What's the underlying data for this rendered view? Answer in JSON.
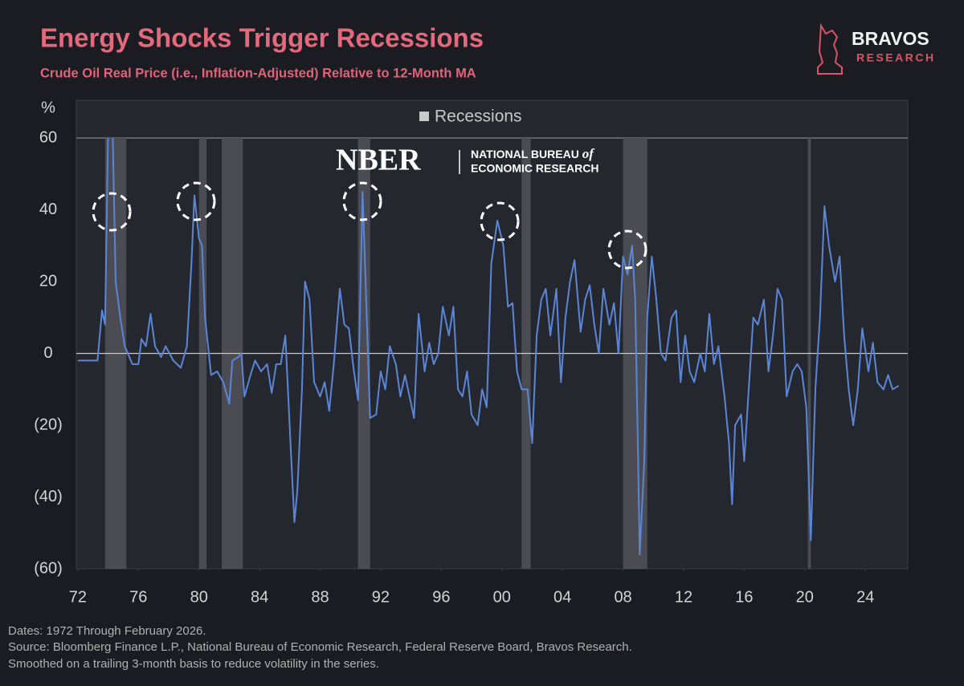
{
  "chart_data": {
    "type": "line",
    "title": "Energy Shocks Trigger Recessions",
    "subtitle": "Crude Oil Real Price (i.e., Inflation-Adjusted) Relative to 12-Month MA",
    "y_axis_label": "%",
    "brand": {
      "name": "BRAVOS",
      "sub": "RESEARCH"
    },
    "source_logo": {
      "mark": "NBER",
      "line1": "NATIONAL BUREAU",
      "line1_suffix": "of",
      "line2": "ECONOMIC RESEARCH"
    },
    "footnotes": [
      "Dates: 1972 Through February 2026.",
      "Source: Bloomberg Finance L.P., National Bureau of Economic Research, Federal Reserve Board, Bravos Research.",
      "Smoothed on a trailing 3-month basis to reduce volatility in the series."
    ],
    "color": "#5b86d8",
    "recessions": {
      "name": "Recessions",
      "color": "#4b4c53",
      "periods": [
        [
          1973.8,
          1975.2
        ],
        [
          1980.0,
          1980.5
        ],
        [
          1981.5,
          1982.9
        ],
        [
          1990.5,
          1991.3
        ],
        [
          2001.3,
          2001.9
        ],
        [
          2008.0,
          2009.6
        ],
        [
          2020.2,
          2020.4
        ]
      ]
    },
    "x": [
      1972.0,
      1973.3,
      1973.6,
      1973.8,
      1974.0,
      1974.3,
      1974.5,
      1974.8,
      1975.1,
      1975.6,
      1976.0,
      1976.2,
      1976.5,
      1976.8,
      1977.1,
      1977.5,
      1977.8,
      1978.3,
      1978.8,
      1979.2,
      1979.5,
      1979.7,
      1980.0,
      1980.2,
      1980.4,
      1980.8,
      1981.2,
      1981.6,
      1982.0,
      1982.2,
      1982.6,
      1982.8,
      1983.0,
      1983.4,
      1983.7,
      1984.1,
      1984.5,
      1984.8,
      1985.1,
      1985.4,
      1985.7,
      1986.1,
      1986.3,
      1986.5,
      1986.8,
      1987.0,
      1987.3,
      1987.6,
      1988.0,
      1988.3,
      1988.6,
      1988.9,
      1989.3,
      1989.6,
      1989.9,
      1990.2,
      1990.5,
      1990.8,
      1991.0,
      1991.3,
      1991.7,
      1992.0,
      1992.3,
      1992.6,
      1993.0,
      1993.3,
      1993.6,
      1993.9,
      1994.2,
      1994.5,
      1994.9,
      1995.2,
      1995.5,
      1995.8,
      1996.1,
      1996.5,
      1996.8,
      1997.1,
      1997.4,
      1997.7,
      1998.0,
      1998.4,
      1998.7,
      1999.0,
      1999.3,
      1999.7,
      2000.1,
      2000.4,
      2000.7,
      2001.0,
      2001.3,
      2001.7,
      2002.0,
      2002.3,
      2002.6,
      2002.9,
      2003.2,
      2003.6,
      2003.9,
      2004.2,
      2004.5,
      2004.8,
      2005.2,
      2005.5,
      2005.8,
      2006.1,
      2006.4,
      2006.7,
      2007.1,
      2007.4,
      2007.7,
      2008.0,
      2008.3,
      2008.6,
      2008.8,
      2009.0,
      2009.1,
      2009.4,
      2009.6,
      2009.9,
      2010.2,
      2010.5,
      2010.8,
      2011.2,
      2011.5,
      2011.8,
      2012.1,
      2012.4,
      2012.7,
      2013.1,
      2013.4,
      2013.7,
      2014.0,
      2014.3,
      2014.7,
      2015.0,
      2015.2,
      2015.4,
      2015.8,
      2016.0,
      2016.3,
      2016.6,
      2016.9,
      2017.3,
      2017.6,
      2017.9,
      2018.2,
      2018.5,
      2018.8,
      2019.2,
      2019.5,
      2019.8,
      2020.1,
      2020.4,
      2020.7,
      2021.0,
      2021.3,
      2021.6,
      2022.0,
      2022.3,
      2022.6,
      2022.9,
      2023.2,
      2023.5,
      2023.8,
      2024.2,
      2024.5,
      2024.8,
      2025.2,
      2025.5,
      2025.8,
      2026.2
    ],
    "values": [
      -2,
      -2,
      12,
      8,
      62,
      62,
      20,
      10,
      2,
      -3,
      -3,
      4,
      2,
      11,
      2,
      -1,
      2,
      -2,
      -4,
      2,
      25,
      44,
      32,
      30,
      10,
      -6,
      -5,
      -8,
      -14,
      -2,
      -1,
      0,
      -12,
      -6,
      -2,
      -5,
      -3,
      -11,
      -3,
      -3,
      5,
      -30,
      -47,
      -38,
      -10,
      20,
      15,
      -8,
      -12,
      -8,
      -16,
      -3,
      18,
      8,
      7,
      -4,
      -13,
      45,
      20,
      -18,
      -17,
      -5,
      -10,
      2,
      -3,
      -12,
      -6,
      -12,
      -18,
      11,
      -5,
      3,
      -3,
      0,
      13,
      5,
      13,
      -10,
      -12,
      -5,
      -17,
      -20,
      -10,
      -15,
      25,
      37,
      30,
      13,
      14,
      -5,
      -10,
      -10,
      -25,
      5,
      15,
      18,
      5,
      18,
      -8,
      10,
      20,
      26,
      6,
      15,
      19,
      8,
      0,
      18,
      8,
      14,
      0,
      27,
      22,
      30,
      15,
      -30,
      -56,
      -30,
      10,
      27,
      15,
      0,
      -2,
      10,
      12,
      -8,
      5,
      -5,
      -8,
      0,
      -5,
      11,
      -3,
      2,
      -12,
      -25,
      -42,
      -20,
      -17,
      -30,
      -10,
      10,
      8,
      15,
      -5,
      5,
      18,
      15,
      -12,
      -5,
      -3,
      -5,
      -15,
      -52,
      -10,
      10,
      41,
      30,
      20,
      27,
      5,
      -10,
      -20,
      -10,
      7,
      -5,
      3,
      -8,
      -10,
      -6,
      -10,
      -9
    ],
    "xlim": [
      1971.9,
      2026.8
    ],
    "xticks": [
      {
        "value": 1972,
        "label": "72"
      },
      {
        "value": 1976,
        "label": "76"
      },
      {
        "value": 1980,
        "label": "80"
      },
      {
        "value": 1984,
        "label": "84"
      },
      {
        "value": 1988,
        "label": "88"
      },
      {
        "value": 1992,
        "label": "92"
      },
      {
        "value": 1996,
        "label": "96"
      },
      {
        "value": 2000,
        "label": "00"
      },
      {
        "value": 2004,
        "label": "04"
      },
      {
        "value": 2008,
        "label": "08"
      },
      {
        "value": 2012,
        "label": "12"
      },
      {
        "value": 2016,
        "label": "16"
      },
      {
        "value": 2020,
        "label": "20"
      },
      {
        "value": 2024,
        "label": "24"
      }
    ],
    "ylim": [
      -60,
      60
    ],
    "yticks": [
      60,
      40,
      20,
      0,
      {
        "value": -20,
        "label": "(20)"
      },
      {
        "value": -40,
        "label": "(40)"
      },
      {
        "value": -60,
        "label": "(60)"
      }
    ]
  }
}
